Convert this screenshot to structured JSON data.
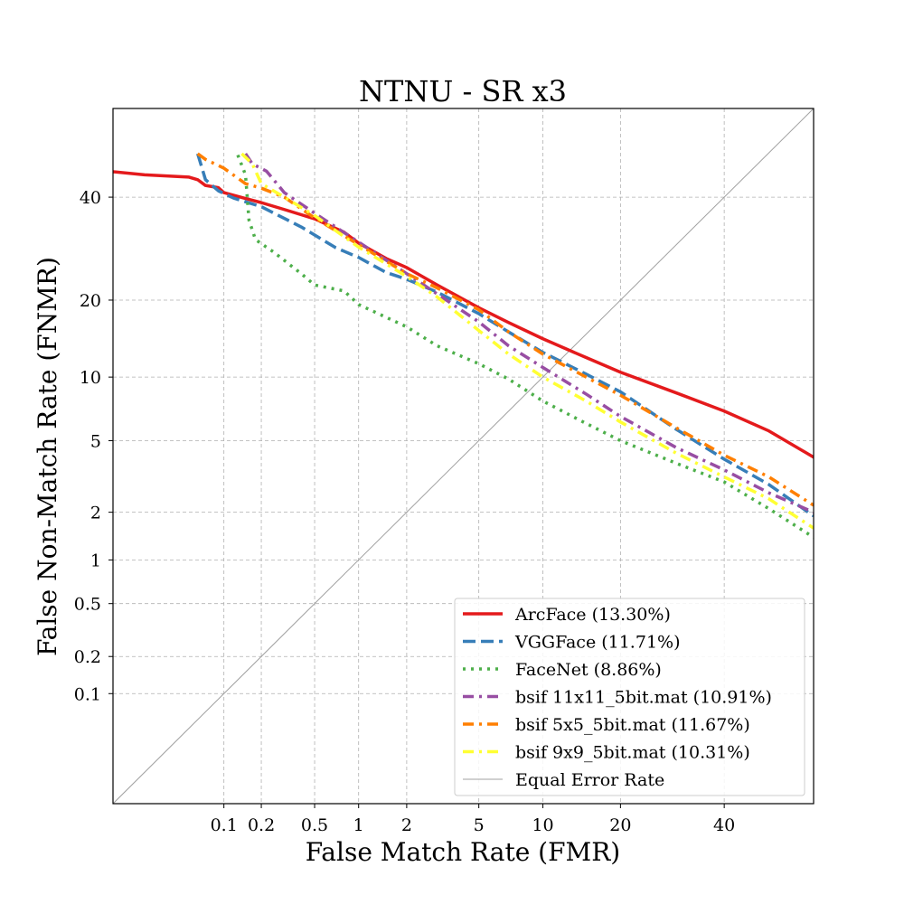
{
  "chart_data": {
    "type": "line",
    "title": "NTNU - SR x3",
    "xlabel": "False Match Rate (FMR)",
    "ylabel": "False Non-Match Rate (FNMR)",
    "x_scale": "probit",
    "y_scale": "probit",
    "xlim": [
      0.01,
      60
    ],
    "ylim": [
      0.01,
      60
    ],
    "x_ticks": [
      0.1,
      0.2,
      0.5,
      1,
      2,
      5,
      10,
      20,
      40
    ],
    "x_tick_labels": [
      "0.1",
      "0.2",
      "0.5",
      "1",
      "2",
      "5",
      "10",
      "20",
      "40"
    ],
    "y_ticks": [
      0.1,
      0.2,
      0.5,
      1,
      2,
      5,
      10,
      20,
      40
    ],
    "y_tick_labels": [
      "0.1",
      "0.2",
      "0.5",
      "1",
      "2",
      "5",
      "10",
      "20",
      "40"
    ],
    "grid": true,
    "legend_position": "lower-right",
    "series": [
      {
        "name": "ArcFace (13.30%)",
        "color": "#e41a1c",
        "style": "solid",
        "points": [
          [
            0.01,
            45.7
          ],
          [
            0.02,
            45.0
          ],
          [
            0.05,
            44.5
          ],
          [
            0.06,
            43.9
          ],
          [
            0.07,
            42.6
          ],
          [
            0.09,
            42.1
          ],
          [
            0.1,
            41.0
          ],
          [
            0.15,
            39.7
          ],
          [
            0.2,
            38.8
          ],
          [
            0.3,
            37.3
          ],
          [
            0.5,
            35.3
          ],
          [
            0.8,
            32.5
          ],
          [
            1,
            30.3
          ],
          [
            1.5,
            27.3
          ],
          [
            2,
            25.6
          ],
          [
            3,
            22.5
          ],
          [
            5,
            18.8
          ],
          [
            7,
            16.6
          ],
          [
            10,
            14.4
          ],
          [
            15,
            12.1
          ],
          [
            20,
            10.5
          ],
          [
            30,
            8.5
          ],
          [
            40,
            7.0
          ],
          [
            50,
            5.6
          ],
          [
            60,
            4.1
          ]
        ]
      },
      {
        "name": "VGGFace (11.71%)",
        "color": "#377eb8",
        "style": "dashed",
        "points": [
          [
            0.06,
            49.8
          ],
          [
            0.07,
            43.9
          ],
          [
            0.09,
            41.4
          ],
          [
            0.12,
            39.8
          ],
          [
            0.2,
            37.9
          ],
          [
            0.4,
            33.6
          ],
          [
            0.7,
            29.4
          ],
          [
            1,
            27.5
          ],
          [
            1.5,
            24.7
          ],
          [
            2,
            23.5
          ],
          [
            3,
            21.3
          ],
          [
            5,
            17.9
          ],
          [
            7,
            15.3
          ],
          [
            10,
            12.7
          ],
          [
            15,
            10.3
          ],
          [
            20,
            8.6
          ],
          [
            30,
            5.7
          ],
          [
            40,
            4.0
          ],
          [
            50,
            2.9
          ],
          [
            60,
            1.9
          ]
        ]
      },
      {
        "name": "FaceNet (8.86%)",
        "color": "#4daf4a",
        "style": "dotted",
        "points": [
          [
            0.13,
            49.5
          ],
          [
            0.15,
            45.0
          ],
          [
            0.16,
            35.0
          ],
          [
            0.18,
            31.0
          ],
          [
            0.25,
            28.5
          ],
          [
            0.4,
            24.5
          ],
          [
            0.5,
            22.5
          ],
          [
            0.8,
            21.5
          ],
          [
            1,
            19.3
          ],
          [
            2,
            16.0
          ],
          [
            3,
            13.5
          ],
          [
            5,
            11.4
          ],
          [
            7,
            9.8
          ],
          [
            10,
            7.8
          ],
          [
            15,
            6.1
          ],
          [
            20,
            5.0
          ],
          [
            30,
            3.8
          ],
          [
            40,
            3.0
          ],
          [
            50,
            2.1
          ],
          [
            60,
            1.4
          ]
        ]
      },
      {
        "name": "bsif 11x11_5bit.mat (10.91%)",
        "color": "#984ea3",
        "style": "dashdot",
        "points": [
          [
            0.15,
            49.8
          ],
          [
            0.17,
            47.5
          ],
          [
            0.22,
            45.8
          ],
          [
            0.3,
            41.0
          ],
          [
            0.5,
            36.5
          ],
          [
            1,
            30.5
          ],
          [
            2,
            24.5
          ],
          [
            3,
            21.0
          ],
          [
            5,
            16.7
          ],
          [
            7,
            13.5
          ],
          [
            10,
            11.0
          ],
          [
            15,
            8.4
          ],
          [
            20,
            6.6
          ],
          [
            30,
            4.6
          ],
          [
            40,
            3.5
          ],
          [
            50,
            2.6
          ],
          [
            60,
            2.0
          ]
        ]
      },
      {
        "name": "bsif 5x5_5bit.mat (11.67%)",
        "color": "#ff7f00",
        "style": "dashdot",
        "points": [
          [
            0.06,
            49.8
          ],
          [
            0.07,
            48.5
          ],
          [
            0.1,
            46.5
          ],
          [
            0.15,
            43.0
          ],
          [
            0.2,
            42.0
          ],
          [
            0.3,
            40.0
          ],
          [
            0.5,
            35.5
          ],
          [
            1,
            30.0
          ],
          [
            2,
            24.5
          ],
          [
            3,
            22.0
          ],
          [
            5,
            18.5
          ],
          [
            7,
            15.3
          ],
          [
            10,
            12.5
          ],
          [
            15,
            10.0
          ],
          [
            20,
            8.3
          ],
          [
            30,
            5.8
          ],
          [
            40,
            4.2
          ],
          [
            50,
            3.2
          ],
          [
            60,
            2.2
          ]
        ]
      },
      {
        "name": "bsif 9x9_5bit.mat (10.31%)",
        "color": "#ffff33",
        "style": "dashdot",
        "points": [
          [
            0.14,
            49.8
          ],
          [
            0.17,
            47.5
          ],
          [
            0.2,
            43.0
          ],
          [
            0.3,
            40.0
          ],
          [
            0.5,
            36.0
          ],
          [
            1,
            29.5
          ],
          [
            2,
            24.0
          ],
          [
            3,
            20.5
          ],
          [
            5,
            15.5
          ],
          [
            7,
            12.5
          ],
          [
            10,
            10.0
          ],
          [
            15,
            7.8
          ],
          [
            20,
            6.2
          ],
          [
            30,
            4.3
          ],
          [
            40,
            3.2
          ],
          [
            50,
            2.4
          ],
          [
            60,
            1.6
          ]
        ]
      },
      {
        "name": "Equal Error Rate",
        "color": "#a0a0a0",
        "style": "thin",
        "points": [
          [
            0.01,
            0.01
          ],
          [
            60,
            60
          ]
        ]
      }
    ]
  }
}
